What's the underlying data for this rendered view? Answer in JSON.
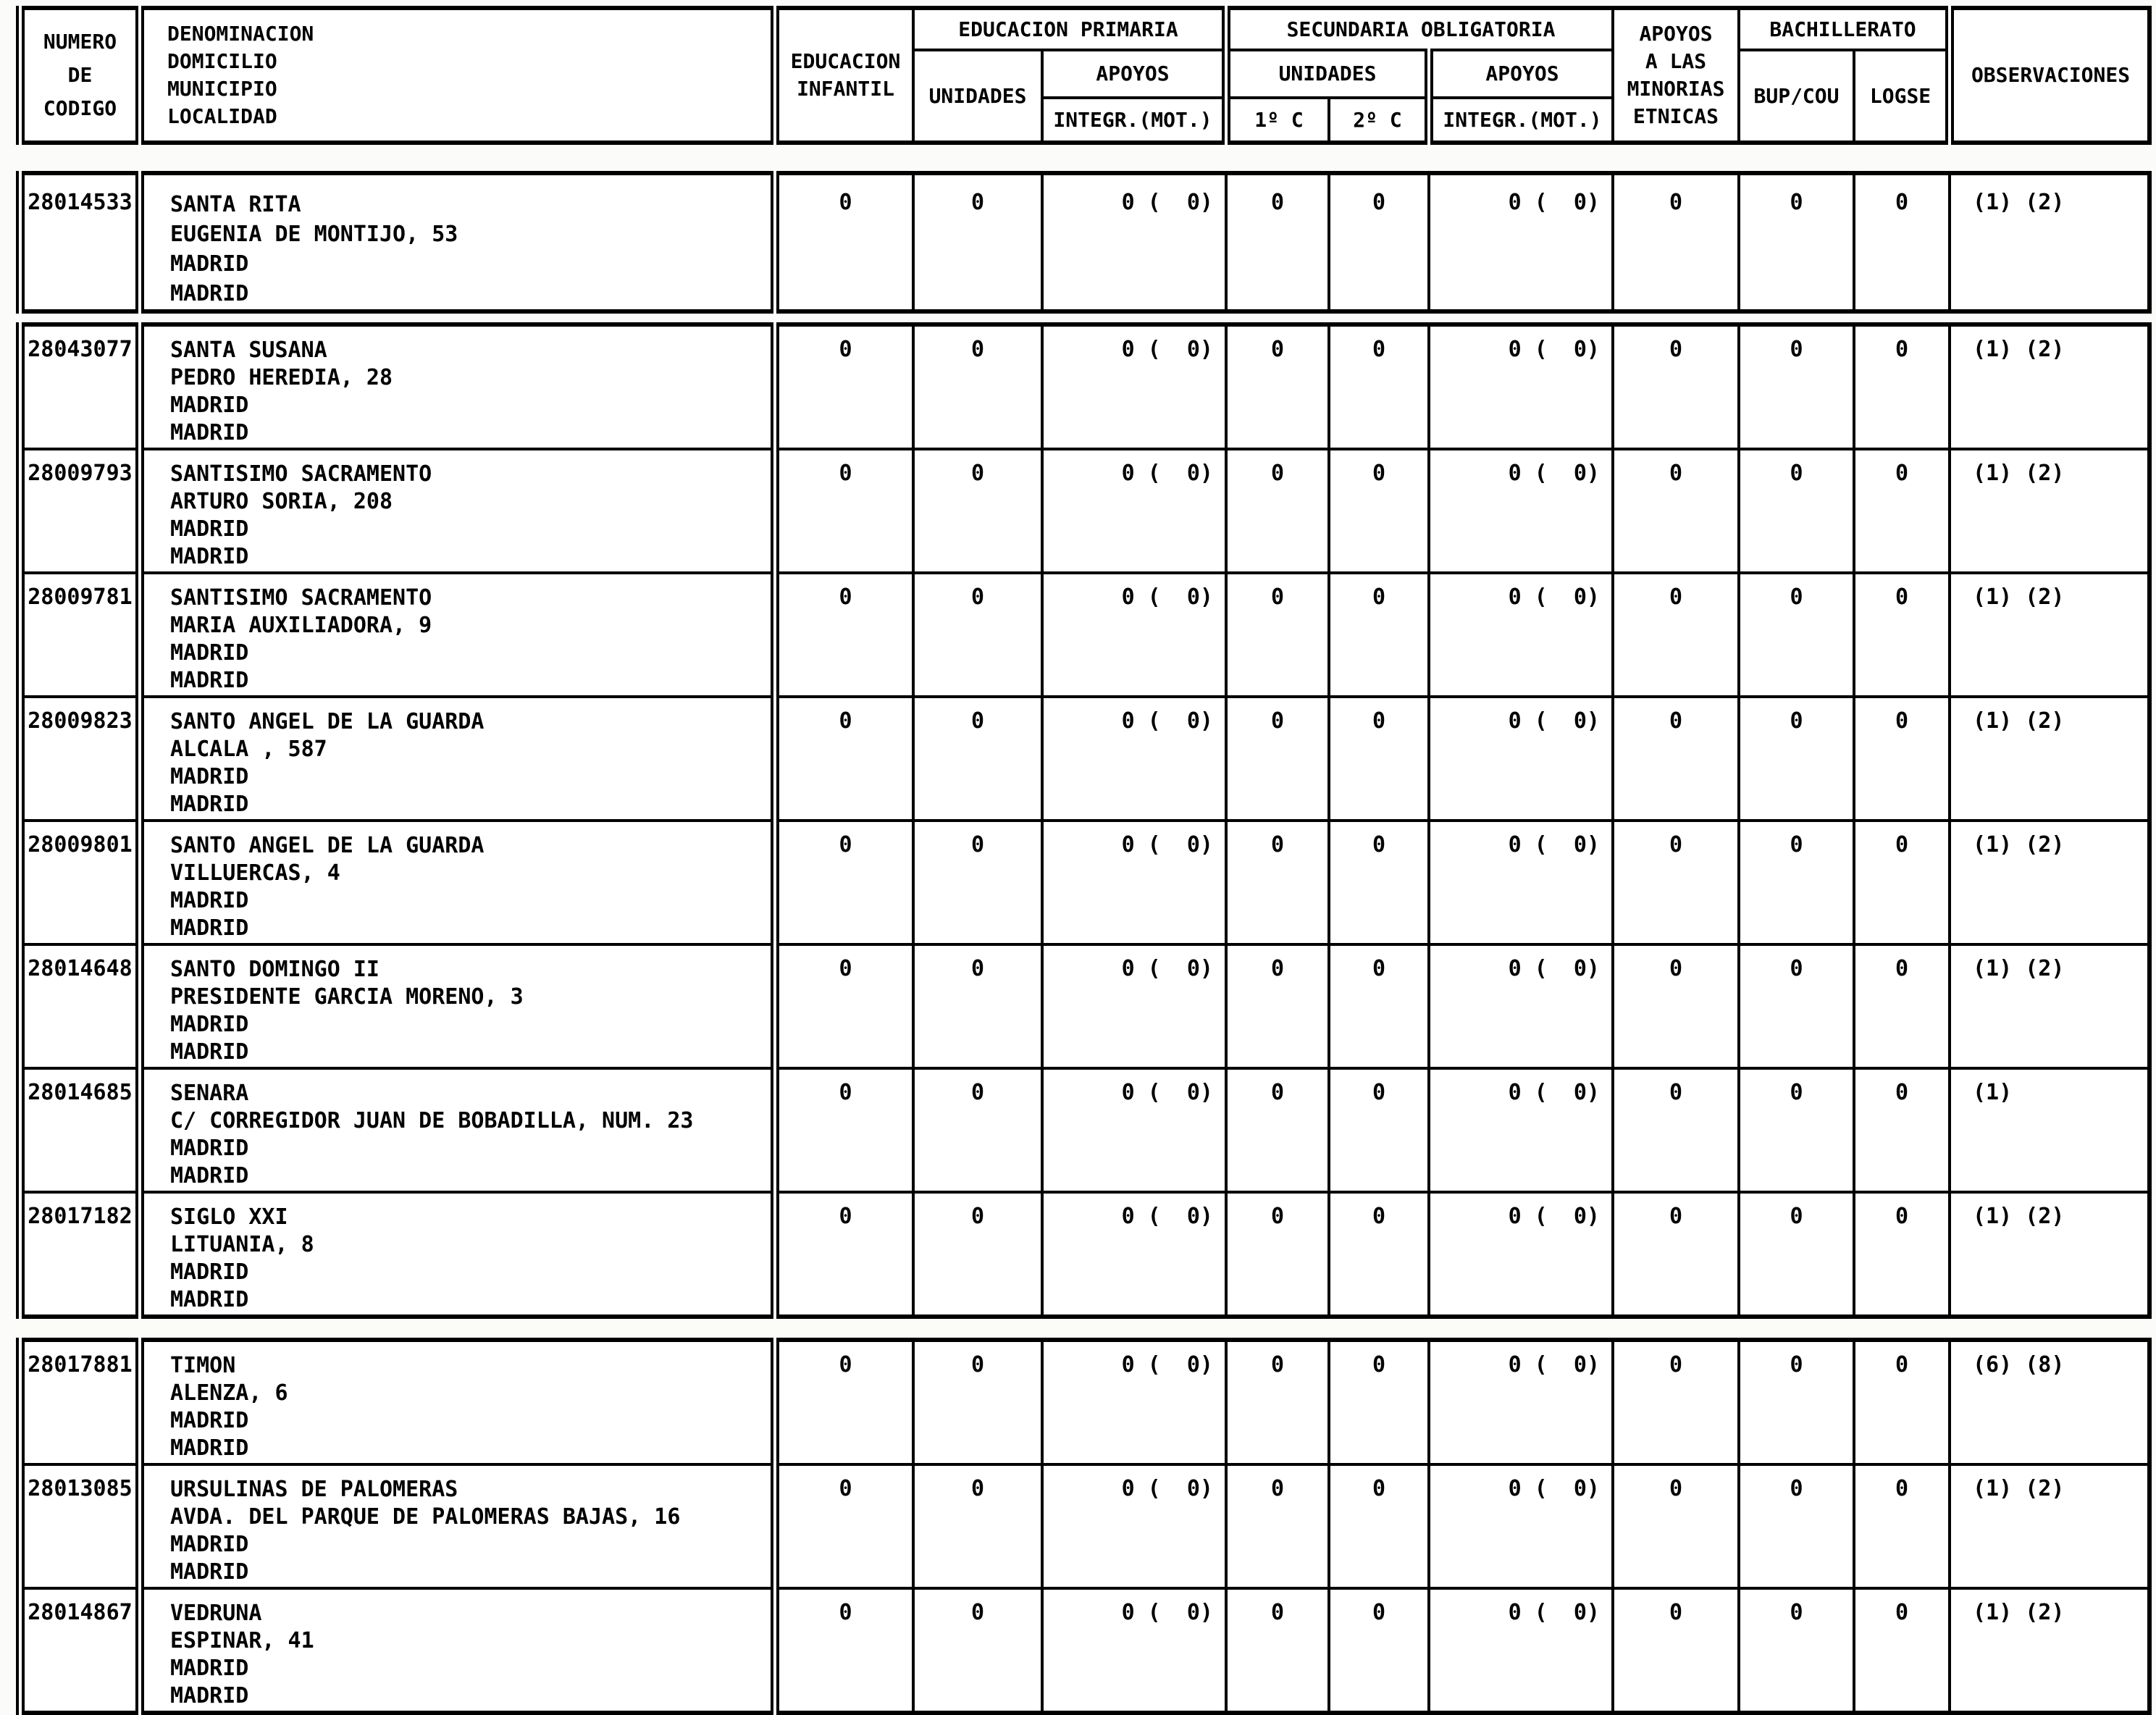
{
  "header": {
    "codigo": "NUMERO\nDE\nCODIGO",
    "denominacion": "DENOMINACION\nDOMICILIO\nMUNICIPIO\nLOCALIDAD",
    "infantil": "EDUCACION\nINFANTIL",
    "primaria": {
      "title": "EDUCACION PRIMARIA",
      "unidades": "UNIDADES",
      "apoyos": "APOYOS",
      "integr": "INTEGR.(MOT.)"
    },
    "secundaria": {
      "title": "SECUNDARIA OBLIGATORIA",
      "unidades": "UNIDADES",
      "apoyos": "APOYOS",
      "c1": "1º C",
      "c2": "2º C",
      "integr": "INTEGR.(MOT.)"
    },
    "minorias": "APOYOS\nA LAS\nMINORIAS\nETNICAS",
    "bachillerato": {
      "title": "BACHILLERATO",
      "bup": "BUP/COU",
      "logse": "LOGSE"
    },
    "observaciones": "OBSERVACIONES"
  },
  "blocks": [
    {
      "rows": [
        {
          "codigo": "28014533",
          "denominacion": "SANTA RITA\nEUGENIA DE MONTIJO, 53\nMADRID\nMADRID",
          "infantil": "0",
          "prim_unidades": "0",
          "prim_integr": "0 (  0)",
          "sec_c1": "0",
          "sec_c2": "0",
          "sec_integr": "0 (  0)",
          "minorias": "0",
          "bup": "0",
          "logse": "0",
          "obs": "(1) (2)"
        }
      ]
    },
    {
      "rows": [
        {
          "codigo": "28043077",
          "denominacion": "SANTA SUSANA\nPEDRO HEREDIA, 28\nMADRID\nMADRID",
          "infantil": "0",
          "prim_unidades": "0",
          "prim_integr": "0 (  0)",
          "sec_c1": "0",
          "sec_c2": "0",
          "sec_integr": "0 (  0)",
          "minorias": "0",
          "bup": "0",
          "logse": "0",
          "obs": "(1) (2)"
        },
        {
          "codigo": "28009793",
          "denominacion": "SANTISIMO SACRAMENTO\nARTURO SORIA, 208\nMADRID\nMADRID",
          "infantil": "0",
          "prim_unidades": "0",
          "prim_integr": "0 (  0)",
          "sec_c1": "0",
          "sec_c2": "0",
          "sec_integr": "0 (  0)",
          "minorias": "0",
          "bup": "0",
          "logse": "0",
          "obs": "(1) (2)"
        },
        {
          "codigo": "28009781",
          "denominacion": "SANTISIMO SACRAMENTO\nMARIA AUXILIADORA, 9\nMADRID\nMADRID",
          "infantil": "0",
          "prim_unidades": "0",
          "prim_integr": "0 (  0)",
          "sec_c1": "0",
          "sec_c2": "0",
          "sec_integr": "0 (  0)",
          "minorias": "0",
          "bup": "0",
          "logse": "0",
          "obs": "(1) (2)"
        },
        {
          "codigo": "28009823",
          "denominacion": "SANTO ANGEL DE LA GUARDA\nALCALA , 587\nMADRID\nMADRID",
          "infantil": "0",
          "prim_unidades": "0",
          "prim_integr": "0 (  0)",
          "sec_c1": "0",
          "sec_c2": "0",
          "sec_integr": "0 (  0)",
          "minorias": "0",
          "bup": "0",
          "logse": "0",
          "obs": "(1) (2)"
        },
        {
          "codigo": "28009801",
          "denominacion": "SANTO ANGEL DE LA GUARDA\nVILLUERCAS, 4\nMADRID\nMADRID",
          "infantil": "0",
          "prim_unidades": "0",
          "prim_integr": "0 (  0)",
          "sec_c1": "0",
          "sec_c2": "0",
          "sec_integr": "0 (  0)",
          "minorias": "0",
          "bup": "0",
          "logse": "0",
          "obs": "(1) (2)"
        },
        {
          "codigo": "28014648",
          "denominacion": "SANTO DOMINGO II\nPRESIDENTE GARCIA MORENO, 3\nMADRID\nMADRID",
          "infantil": "0",
          "prim_unidades": "0",
          "prim_integr": "0 (  0)",
          "sec_c1": "0",
          "sec_c2": "0",
          "sec_integr": "0 (  0)",
          "minorias": "0",
          "bup": "0",
          "logse": "0",
          "obs": "(1) (2)"
        },
        {
          "codigo": "28014685",
          "denominacion": "SENARA\nC/ CORREGIDOR JUAN DE BOBADILLA, NUM. 23\nMADRID\nMADRID",
          "infantil": "0",
          "prim_unidades": "0",
          "prim_integr": "0 (  0)",
          "sec_c1": "0",
          "sec_c2": "0",
          "sec_integr": "0 (  0)",
          "minorias": "0",
          "bup": "0",
          "logse": "0",
          "obs": "(1)"
        },
        {
          "codigo": "28017182",
          "denominacion": "SIGLO XXI\nLITUANIA, 8\nMADRID\nMADRID",
          "infantil": "0",
          "prim_unidades": "0",
          "prim_integr": "0 (  0)",
          "sec_c1": "0",
          "sec_c2": "0",
          "sec_integr": "0 (  0)",
          "minorias": "0",
          "bup": "0",
          "logse": "0",
          "obs": "(1) (2)"
        }
      ]
    },
    {
      "rows": [
        {
          "codigo": "28017881",
          "denominacion": "TIMON\nALENZA, 6\nMADRID\nMADRID",
          "infantil": "0",
          "prim_unidades": "0",
          "prim_integr": "0 (  0)",
          "sec_c1": "0",
          "sec_c2": "0",
          "sec_integr": "0 (  0)",
          "minorias": "0",
          "bup": "0",
          "logse": "0",
          "obs": "(6) (8)"
        },
        {
          "codigo": "28013085",
          "denominacion": "URSULINAS DE PALOMERAS\nAVDA. DEL PARQUE DE PALOMERAS BAJAS, 16\nMADRID\nMADRID",
          "infantil": "0",
          "prim_unidades": "0",
          "prim_integr": "0 (  0)",
          "sec_c1": "0",
          "sec_c2": "0",
          "sec_integr": "0 (  0)",
          "minorias": "0",
          "bup": "0",
          "logse": "0",
          "obs": "(1) (2)"
        },
        {
          "codigo": "28014867",
          "denominacion": "VEDRUNA\nESPINAR, 41\nMADRID\nMADRID",
          "infantil": "0",
          "prim_unidades": "0",
          "prim_integr": "0 (  0)",
          "sec_c1": "0",
          "sec_c2": "0",
          "sec_integr": "0 (  0)",
          "minorias": "0",
          "bup": "0",
          "logse": "0",
          "obs": "(1) (2)"
        }
      ]
    }
  ]
}
